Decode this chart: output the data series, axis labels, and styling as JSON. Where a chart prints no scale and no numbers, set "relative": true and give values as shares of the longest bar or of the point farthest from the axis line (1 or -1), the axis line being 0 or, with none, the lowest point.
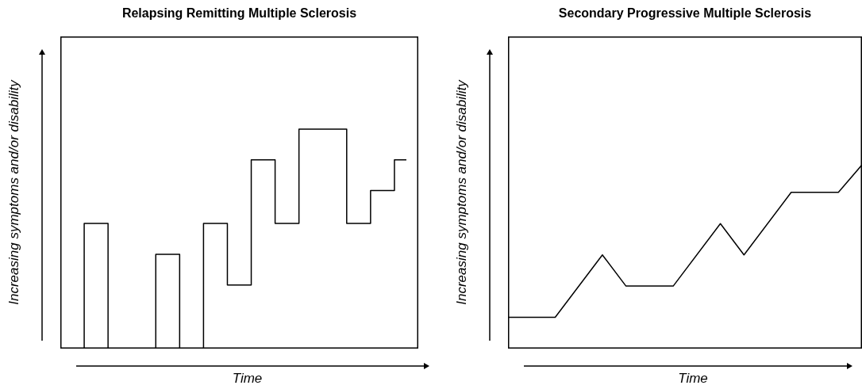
{
  "chart_data": [
    {
      "type": "step",
      "title": "Relapsing Remitting Multiple Sclerosis",
      "xlabel": "Time",
      "ylabel": "Increasing symptoms and/or disability",
      "relative": true,
      "color": "#000000",
      "categories": [
        null,
        null,
        null,
        null,
        null,
        null,
        null,
        null,
        null,
        null,
        null,
        null,
        null,
        null,
        null
      ],
      "values": [
        0,
        0.57,
        0,
        0,
        0.43,
        0,
        0.57,
        0.29,
        0.86,
        0.57,
        1,
        1,
        0.57,
        0.72,
        0.86
      ]
    },
    {
      "type": "line",
      "title": "Secondary Progressive Multiple Sclerosis",
      "xlabel": "Time",
      "ylabel": "Increasing symptoms and/or disability",
      "relative": true,
      "color": "#000000",
      "categories": [
        null,
        null,
        null,
        null,
        null,
        null,
        null,
        null,
        null,
        null,
        null,
        null,
        null,
        null,
        null,
        null
      ],
      "values": [
        0.17,
        null,
        0.17,
        null,
        0.51,
        0.34,
        null,
        0.34,
        null,
        0.68,
        0.51,
        null,
        0.85,
        null,
        0.85,
        1
      ]
    }
  ]
}
